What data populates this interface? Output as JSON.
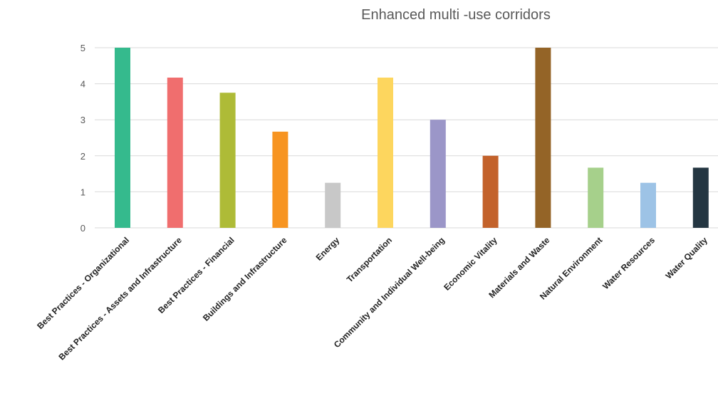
{
  "chart_data": {
    "type": "bar",
    "title": "Enhanced multi  -use corridors",
    "xlabel": "",
    "ylabel": "",
    "ylim": [
      0,
      5
    ],
    "yticks": [
      0,
      1,
      2,
      3,
      4,
      5
    ],
    "grid": true,
    "legend": "none",
    "categories": [
      "Best Practices - Organizational",
      "Best Practices - Assets and Infrastructure",
      "Best Practices - Financial",
      "Buildings and Infrastructure",
      "Energy",
      "Transportation",
      "Community and Individual Well-being",
      "Economic Vitality",
      "Materials and Waste",
      "Natural Environment",
      "Water Resources",
      "Water Quality"
    ],
    "values": [
      5,
      4.17,
      3.75,
      2.67,
      1.25,
      4.17,
      3,
      2,
      5,
      1.67,
      1.25,
      1.67
    ],
    "colors": [
      "#35BA8D",
      "#F06E6E",
      "#AEBB37",
      "#F79421",
      "#C8C8C8",
      "#FDD65E",
      "#9B96C8",
      "#C3622B",
      "#946427",
      "#A6D08B",
      "#9DC3E6",
      "#243642"
    ]
  }
}
